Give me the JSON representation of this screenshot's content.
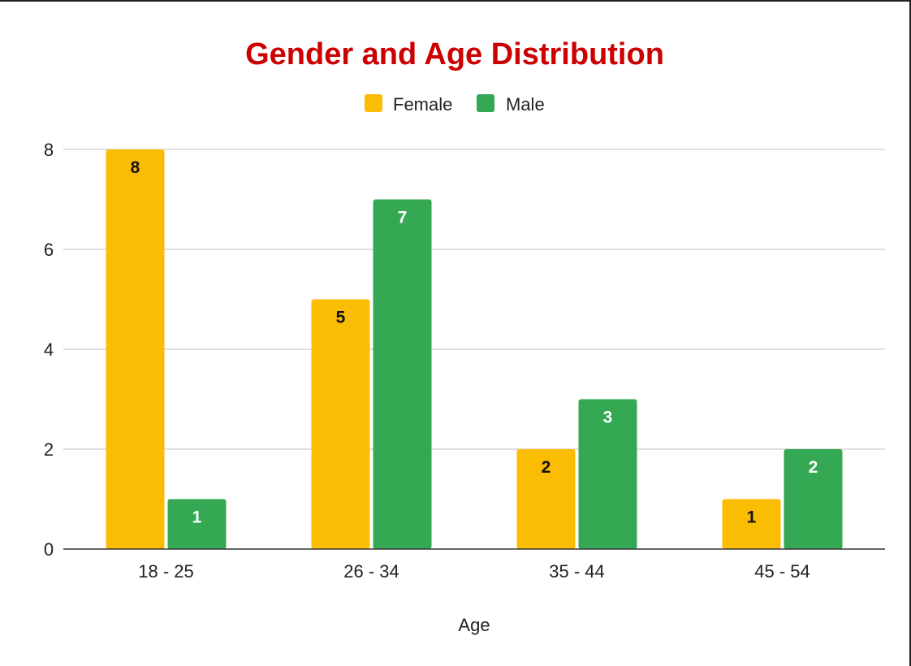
{
  "chart_data": {
    "type": "bar",
    "title": "Gender and Age Distribution",
    "xlabel": "Age",
    "ylabel": "",
    "categories": [
      "18 - 25",
      "26 - 34",
      "35 - 44",
      "45 - 54"
    ],
    "series": [
      {
        "name": "Female",
        "values": [
          8,
          5,
          2,
          1
        ],
        "color": "#FBBC04",
        "label_color": "#111111"
      },
      {
        "name": "Male",
        "values": [
          1,
          7,
          3,
          2
        ],
        "color": "#34A853",
        "label_color": "#ffffff"
      }
    ],
    "ylim": [
      0,
      8
    ],
    "yticks": [
      "0",
      "2",
      "4",
      "6",
      "8"
    ],
    "grid": true,
    "legend_position": "top-center",
    "title_color": "#CC0000"
  }
}
